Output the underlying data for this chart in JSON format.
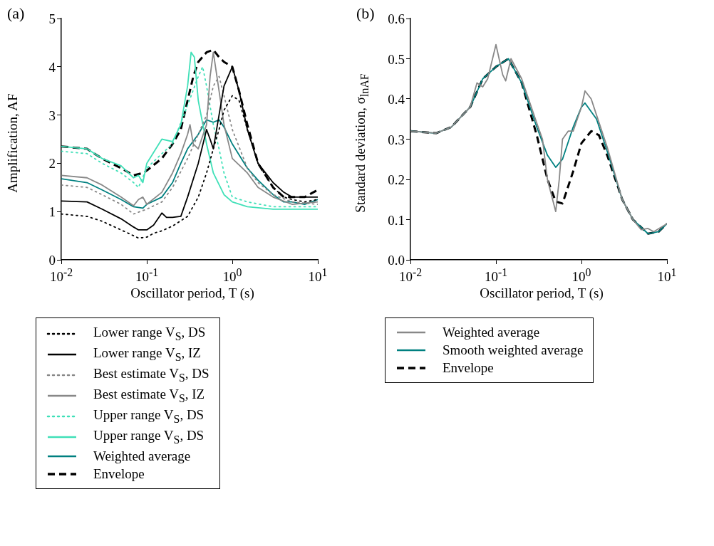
{
  "chart_data": [
    {
      "type": "line",
      "title": "(a)",
      "xlabel": "Oscillator period, T (s)",
      "ylabel": "Amplification, AF",
      "log": "x",
      "xlim": [
        0.01,
        10
      ],
      "ylim": [
        0,
        5
      ],
      "xticks": [
        {
          "value": 0.01,
          "label": "10$^{-2}$"
        },
        {
          "value": 0.1,
          "label": "10$^{-1}$"
        },
        {
          "value": 1,
          "label": "10$^{0}$"
        },
        {
          "value": 10,
          "label": "10$^{1}$"
        }
      ],
      "yticks": [
        0,
        1,
        2,
        3,
        4,
        5
      ],
      "legend": "bottom",
      "series": [
        {
          "name": "Lower range V$_{S}$, DS",
          "color": "#000000",
          "line_style": "dotted",
          "x": [
            0.01,
            0.02,
            0.03,
            0.05,
            0.07,
            0.08,
            0.1,
            0.12,
            0.15,
            0.2,
            0.3,
            0.4,
            0.5,
            0.6,
            0.7,
            0.8,
            1,
            1.2,
            1.5,
            2,
            3,
            4,
            5,
            7,
            10
          ],
          "values": [
            0.95,
            0.9,
            0.8,
            0.62,
            0.5,
            0.45,
            0.47,
            0.55,
            0.6,
            0.7,
            0.9,
            1.3,
            1.8,
            2.3,
            2.7,
            3.1,
            3.4,
            3.3,
            2.7,
            2,
            1.5,
            1.3,
            1.25,
            1.2,
            1.25
          ]
        },
        {
          "name": "Lower range V$_{S}$, IZ",
          "color": "#000000",
          "line_style": "solid",
          "x": [
            0.01,
            0.02,
            0.03,
            0.05,
            0.07,
            0.08,
            0.1,
            0.12,
            0.15,
            0.17,
            0.2,
            0.25,
            0.3,
            0.4,
            0.5,
            0.55,
            0.6,
            0.7,
            0.8,
            1,
            1.2,
            1.5,
            2,
            3,
            4,
            5,
            7,
            10
          ],
          "values": [
            1.22,
            1.2,
            1.05,
            0.85,
            0.68,
            0.62,
            0.62,
            0.72,
            0.97,
            0.88,
            0.88,
            0.9,
            1.3,
            2,
            2.7,
            2.5,
            2.3,
            3,
            3.6,
            4,
            3.5,
            2.7,
            2,
            1.6,
            1.4,
            1.3,
            1.3,
            1.3
          ]
        },
        {
          "name": "Best estimate V$_{S}$, DS",
          "color": "#888888",
          "line_style": "dotted",
          "x": [
            0.01,
            0.02,
            0.03,
            0.05,
            0.07,
            0.1,
            0.15,
            0.2,
            0.3,
            0.4,
            0.5,
            0.6,
            0.7,
            0.8,
            1,
            1.5,
            2,
            3,
            5,
            10
          ],
          "values": [
            1.55,
            1.5,
            1.35,
            1.15,
            0.95,
            1.05,
            1.2,
            1.5,
            2.1,
            2.6,
            3,
            3.6,
            3.8,
            3.4,
            2.7,
            1.9,
            1.6,
            1.35,
            1.2,
            1.15
          ]
        },
        {
          "name": "Best estimate V$_{S}$, IZ",
          "color": "#888888",
          "line_style": "solid",
          "x": [
            0.01,
            0.02,
            0.03,
            0.05,
            0.07,
            0.08,
            0.09,
            0.1,
            0.15,
            0.2,
            0.25,
            0.3,
            0.32,
            0.35,
            0.4,
            0.5,
            0.55,
            0.6,
            0.7,
            0.8,
            1,
            1.5,
            2,
            3,
            5,
            10
          ],
          "values": [
            1.75,
            1.7,
            1.55,
            1.3,
            1.12,
            1.25,
            1.3,
            1.15,
            1.4,
            1.8,
            2.2,
            2.6,
            2.8,
            2.4,
            2.3,
            2.8,
            3.8,
            4.3,
            3.5,
            2.8,
            2.1,
            1.8,
            1.5,
            1.3,
            1.15,
            1.2
          ]
        },
        {
          "name": "Upper range V$_{S}$, DS",
          "color": "#40e0b8",
          "line_style": "dotted",
          "x": [
            0.01,
            0.02,
            0.03,
            0.05,
            0.07,
            0.08,
            0.1,
            0.15,
            0.2,
            0.3,
            0.4,
            0.45,
            0.5,
            0.6,
            0.7,
            0.8,
            1,
            1.5,
            3,
            10
          ],
          "values": [
            2.25,
            2.2,
            2,
            1.8,
            1.6,
            1.5,
            1.9,
            2.2,
            2.4,
            3.2,
            3.8,
            4,
            3.6,
            2.8,
            2.3,
            1.8,
            1.3,
            1.2,
            1.1,
            1.1
          ]
        },
        {
          "name": "Upper range V$_{S}$, DS",
          "color": "#40e0b8",
          "line_style": "solid",
          "x": [
            0.01,
            0.02,
            0.03,
            0.05,
            0.07,
            0.08,
            0.09,
            0.1,
            0.15,
            0.2,
            0.25,
            0.3,
            0.33,
            0.36,
            0.4,
            0.5,
            0.6,
            0.8,
            1,
            1.5,
            3,
            10
          ],
          "values": [
            2.35,
            2.3,
            2.1,
            1.95,
            1.7,
            1.75,
            1.6,
            2,
            2.5,
            2.45,
            2.8,
            3.6,
            4.3,
            4.2,
            3.3,
            2.4,
            1.8,
            1.35,
            1.2,
            1.1,
            1.05,
            1.05
          ]
        },
        {
          "name": "Weighted average",
          "color": "#008080",
          "line_style": "solid",
          "x": [
            0.01,
            0.02,
            0.03,
            0.05,
            0.07,
            0.09,
            0.1,
            0.15,
            0.2,
            0.25,
            0.3,
            0.4,
            0.5,
            0.6,
            0.7,
            0.8,
            1,
            1.5,
            2,
            3,
            4,
            5,
            7,
            10
          ],
          "values": [
            1.68,
            1.6,
            1.45,
            1.25,
            1.1,
            1.07,
            1.15,
            1.3,
            1.6,
            2,
            2.3,
            2.6,
            2.9,
            2.85,
            2.9,
            2.75,
            2.4,
            1.9,
            1.65,
            1.35,
            1.2,
            1.2,
            1.15,
            1.25
          ]
        },
        {
          "name": "Envelope",
          "color": "#000000",
          "line_style": "dashed",
          "x": [
            0.01,
            0.02,
            0.03,
            0.05,
            0.07,
            0.09,
            0.1,
            0.15,
            0.2,
            0.25,
            0.3,
            0.35,
            0.4,
            0.5,
            0.6,
            0.7,
            0.8,
            1,
            1.2,
            1.5,
            2,
            3,
            4,
            5,
            7,
            10
          ],
          "values": [
            2.35,
            2.3,
            2.1,
            1.9,
            1.75,
            1.8,
            1.85,
            2.1,
            2.4,
            2.7,
            3.3,
            3.8,
            4.1,
            4.3,
            4.35,
            4.2,
            4.1,
            4,
            3.5,
            2.8,
            2,
            1.5,
            1.3,
            1.3,
            1.3,
            1.45
          ]
        }
      ]
    },
    {
      "type": "line",
      "title": "(b)",
      "xlabel": "Oscillator period, T (s)",
      "ylabel": "Standard deviation, σ$_{lnAF}$",
      "log": "x",
      "xlim": [
        0.01,
        10
      ],
      "ylim": [
        0,
        0.6
      ],
      "xticks": [
        {
          "value": 0.01,
          "label": "10$^{-2}$"
        },
        {
          "value": 0.1,
          "label": "10$^{-1}$"
        },
        {
          "value": 1,
          "label": "10$^{0}$"
        },
        {
          "value": 10,
          "label": "10$^{1}$"
        }
      ],
      "yticks": [
        {
          "value": 0,
          "label": "0.0"
        },
        0.1,
        0.2,
        0.3,
        0.4,
        0.5,
        0.6
      ],
      "legend": "bottom",
      "series": [
        {
          "name": "Weighted average",
          "color": "#888888",
          "line_style": "solid",
          "x": [
            0.01,
            0.02,
            0.03,
            0.05,
            0.06,
            0.07,
            0.08,
            0.1,
            0.12,
            0.13,
            0.15,
            0.2,
            0.3,
            0.35,
            0.4,
            0.5,
            0.55,
            0.6,
            0.7,
            0.8,
            1,
            1.1,
            1.3,
            1.5,
            2,
            3,
            4,
            5,
            6,
            7,
            10
          ],
          "values": [
            0.32,
            0.315,
            0.33,
            0.38,
            0.44,
            0.43,
            0.45,
            0.535,
            0.46,
            0.445,
            0.5,
            0.45,
            0.34,
            0.3,
            0.2,
            0.12,
            0.2,
            0.3,
            0.32,
            0.32,
            0.38,
            0.42,
            0.4,
            0.36,
            0.28,
            0.15,
            0.1,
            0.075,
            0.078,
            0.07,
            0.09
          ]
        },
        {
          "name": "Smooth weighted average",
          "color": "#008080",
          "line_style": "solid",
          "x": [
            0.01,
            0.02,
            0.03,
            0.05,
            0.07,
            0.1,
            0.14,
            0.2,
            0.3,
            0.4,
            0.5,
            0.6,
            0.8,
            1,
            1.1,
            1.5,
            2,
            3,
            4,
            6,
            8,
            10
          ],
          "values": [
            0.32,
            0.315,
            0.33,
            0.38,
            0.45,
            0.48,
            0.5,
            0.44,
            0.33,
            0.26,
            0.23,
            0.25,
            0.33,
            0.38,
            0.39,
            0.35,
            0.27,
            0.15,
            0.1,
            0.065,
            0.07,
            0.09
          ]
        },
        {
          "name": "Envelope",
          "color": "#000000",
          "line_style": "dashed",
          "x": [
            0.01,
            0.02,
            0.03,
            0.05,
            0.07,
            0.1,
            0.14,
            0.2,
            0.3,
            0.4,
            0.5,
            0.6,
            0.8,
            1,
            1.3,
            1.6,
            2,
            3,
            4,
            6,
            8,
            10
          ],
          "values": [
            0.32,
            0.315,
            0.33,
            0.38,
            0.45,
            0.48,
            0.5,
            0.44,
            0.31,
            0.2,
            0.145,
            0.14,
            0.22,
            0.29,
            0.32,
            0.31,
            0.26,
            0.15,
            0.1,
            0.065,
            0.07,
            0.09
          ]
        }
      ]
    }
  ]
}
